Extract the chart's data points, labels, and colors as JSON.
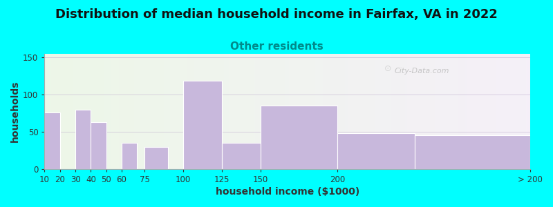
{
  "title": "Distribution of median household income in Fairfax, VA in 2022",
  "subtitle": "Other residents",
  "xlabel": "household income ($1000)",
  "ylabel": "households",
  "background_color": "#00FFFF",
  "bar_color": "#C8B8DC",
  "bar_edge_color": "#ffffff",
  "categories": [
    "10",
    "20",
    "30",
    "40",
    "50",
    "60",
    "75",
    "100",
    "125",
    "150",
    "200",
    "> 200"
  ],
  "bar_lefts": [
    10,
    20,
    30,
    40,
    50,
    60,
    75,
    100,
    125,
    150,
    200,
    250
  ],
  "bar_widths": [
    10,
    10,
    10,
    10,
    10,
    10,
    15,
    25,
    25,
    50,
    50,
    75
  ],
  "values": [
    76,
    0,
    80,
    63,
    0,
    35,
    30,
    119,
    35,
    85,
    48,
    45
  ],
  "xtick_positions": [
    10,
    20,
    30,
    40,
    50,
    60,
    75,
    100,
    125,
    150,
    200,
    325
  ],
  "xtick_labels": [
    "10",
    "20",
    "30",
    "40",
    "50",
    "60",
    "75",
    "100",
    "125",
    "150",
    "200",
    "> 200"
  ],
  "yticks": [
    0,
    50,
    100,
    150
  ],
  "ylim": [
    0,
    155
  ],
  "xlim": [
    10,
    325
  ],
  "title_fontsize": 13,
  "subtitle_fontsize": 11,
  "subtitle_color": "#008B8B",
  "axis_label_fontsize": 10,
  "watermark": "City-Data.com"
}
